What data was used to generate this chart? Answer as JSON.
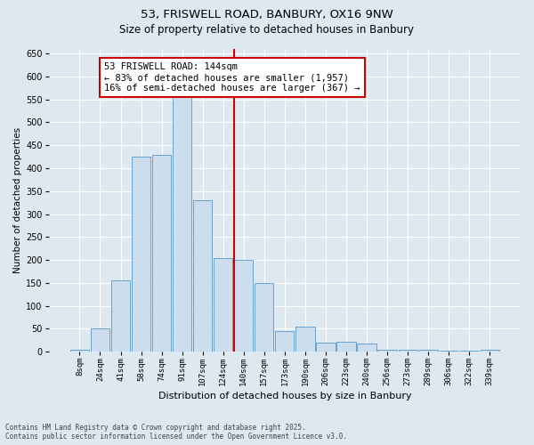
{
  "title_line1": "53, FRISWELL ROAD, BANBURY, OX16 9NW",
  "title_line2": "Size of property relative to detached houses in Banbury",
  "xlabel": "Distribution of detached houses by size in Banbury",
  "ylabel": "Number of detached properties",
  "footer_line1": "Contains HM Land Registry data © Crown copyright and database right 2025.",
  "footer_line2": "Contains public sector information licensed under the Open Government Licence v3.0.",
  "annotation_line1": "53 FRISWELL ROAD: 144sqm",
  "annotation_line2": "← 83% of detached houses are smaller (1,957)",
  "annotation_line3": "16% of semi-detached houses are larger (367) →",
  "bar_labels": [
    "8sqm",
    "24sqm",
    "41sqm",
    "58sqm",
    "74sqm",
    "91sqm",
    "107sqm",
    "124sqm",
    "140sqm",
    "157sqm",
    "173sqm",
    "190sqm",
    "206sqm",
    "223sqm",
    "240sqm",
    "256sqm",
    "273sqm",
    "289sqm",
    "306sqm",
    "322sqm",
    "339sqm"
  ],
  "bar_values": [
    5,
    50,
    155,
    425,
    430,
    575,
    330,
    205,
    200,
    150,
    45,
    55,
    20,
    22,
    18,
    5,
    5,
    5,
    2,
    2,
    5
  ],
  "bar_color": "#ccdded",
  "bar_edgecolor": "#5599cc",
  "vline_x_index": 8,
  "vline_color": "#cc0000",
  "annotation_box_color": "#cc0000",
  "background_color": "#dde8f0",
  "ylim": [
    0,
    660
  ],
  "yticks": [
    0,
    50,
    100,
    150,
    200,
    250,
    300,
    350,
    400,
    450,
    500,
    550,
    600,
    650
  ],
  "grid_color": "#ffffff",
  "figsize": [
    6.0,
    5.0
  ],
  "dpi": 100
}
